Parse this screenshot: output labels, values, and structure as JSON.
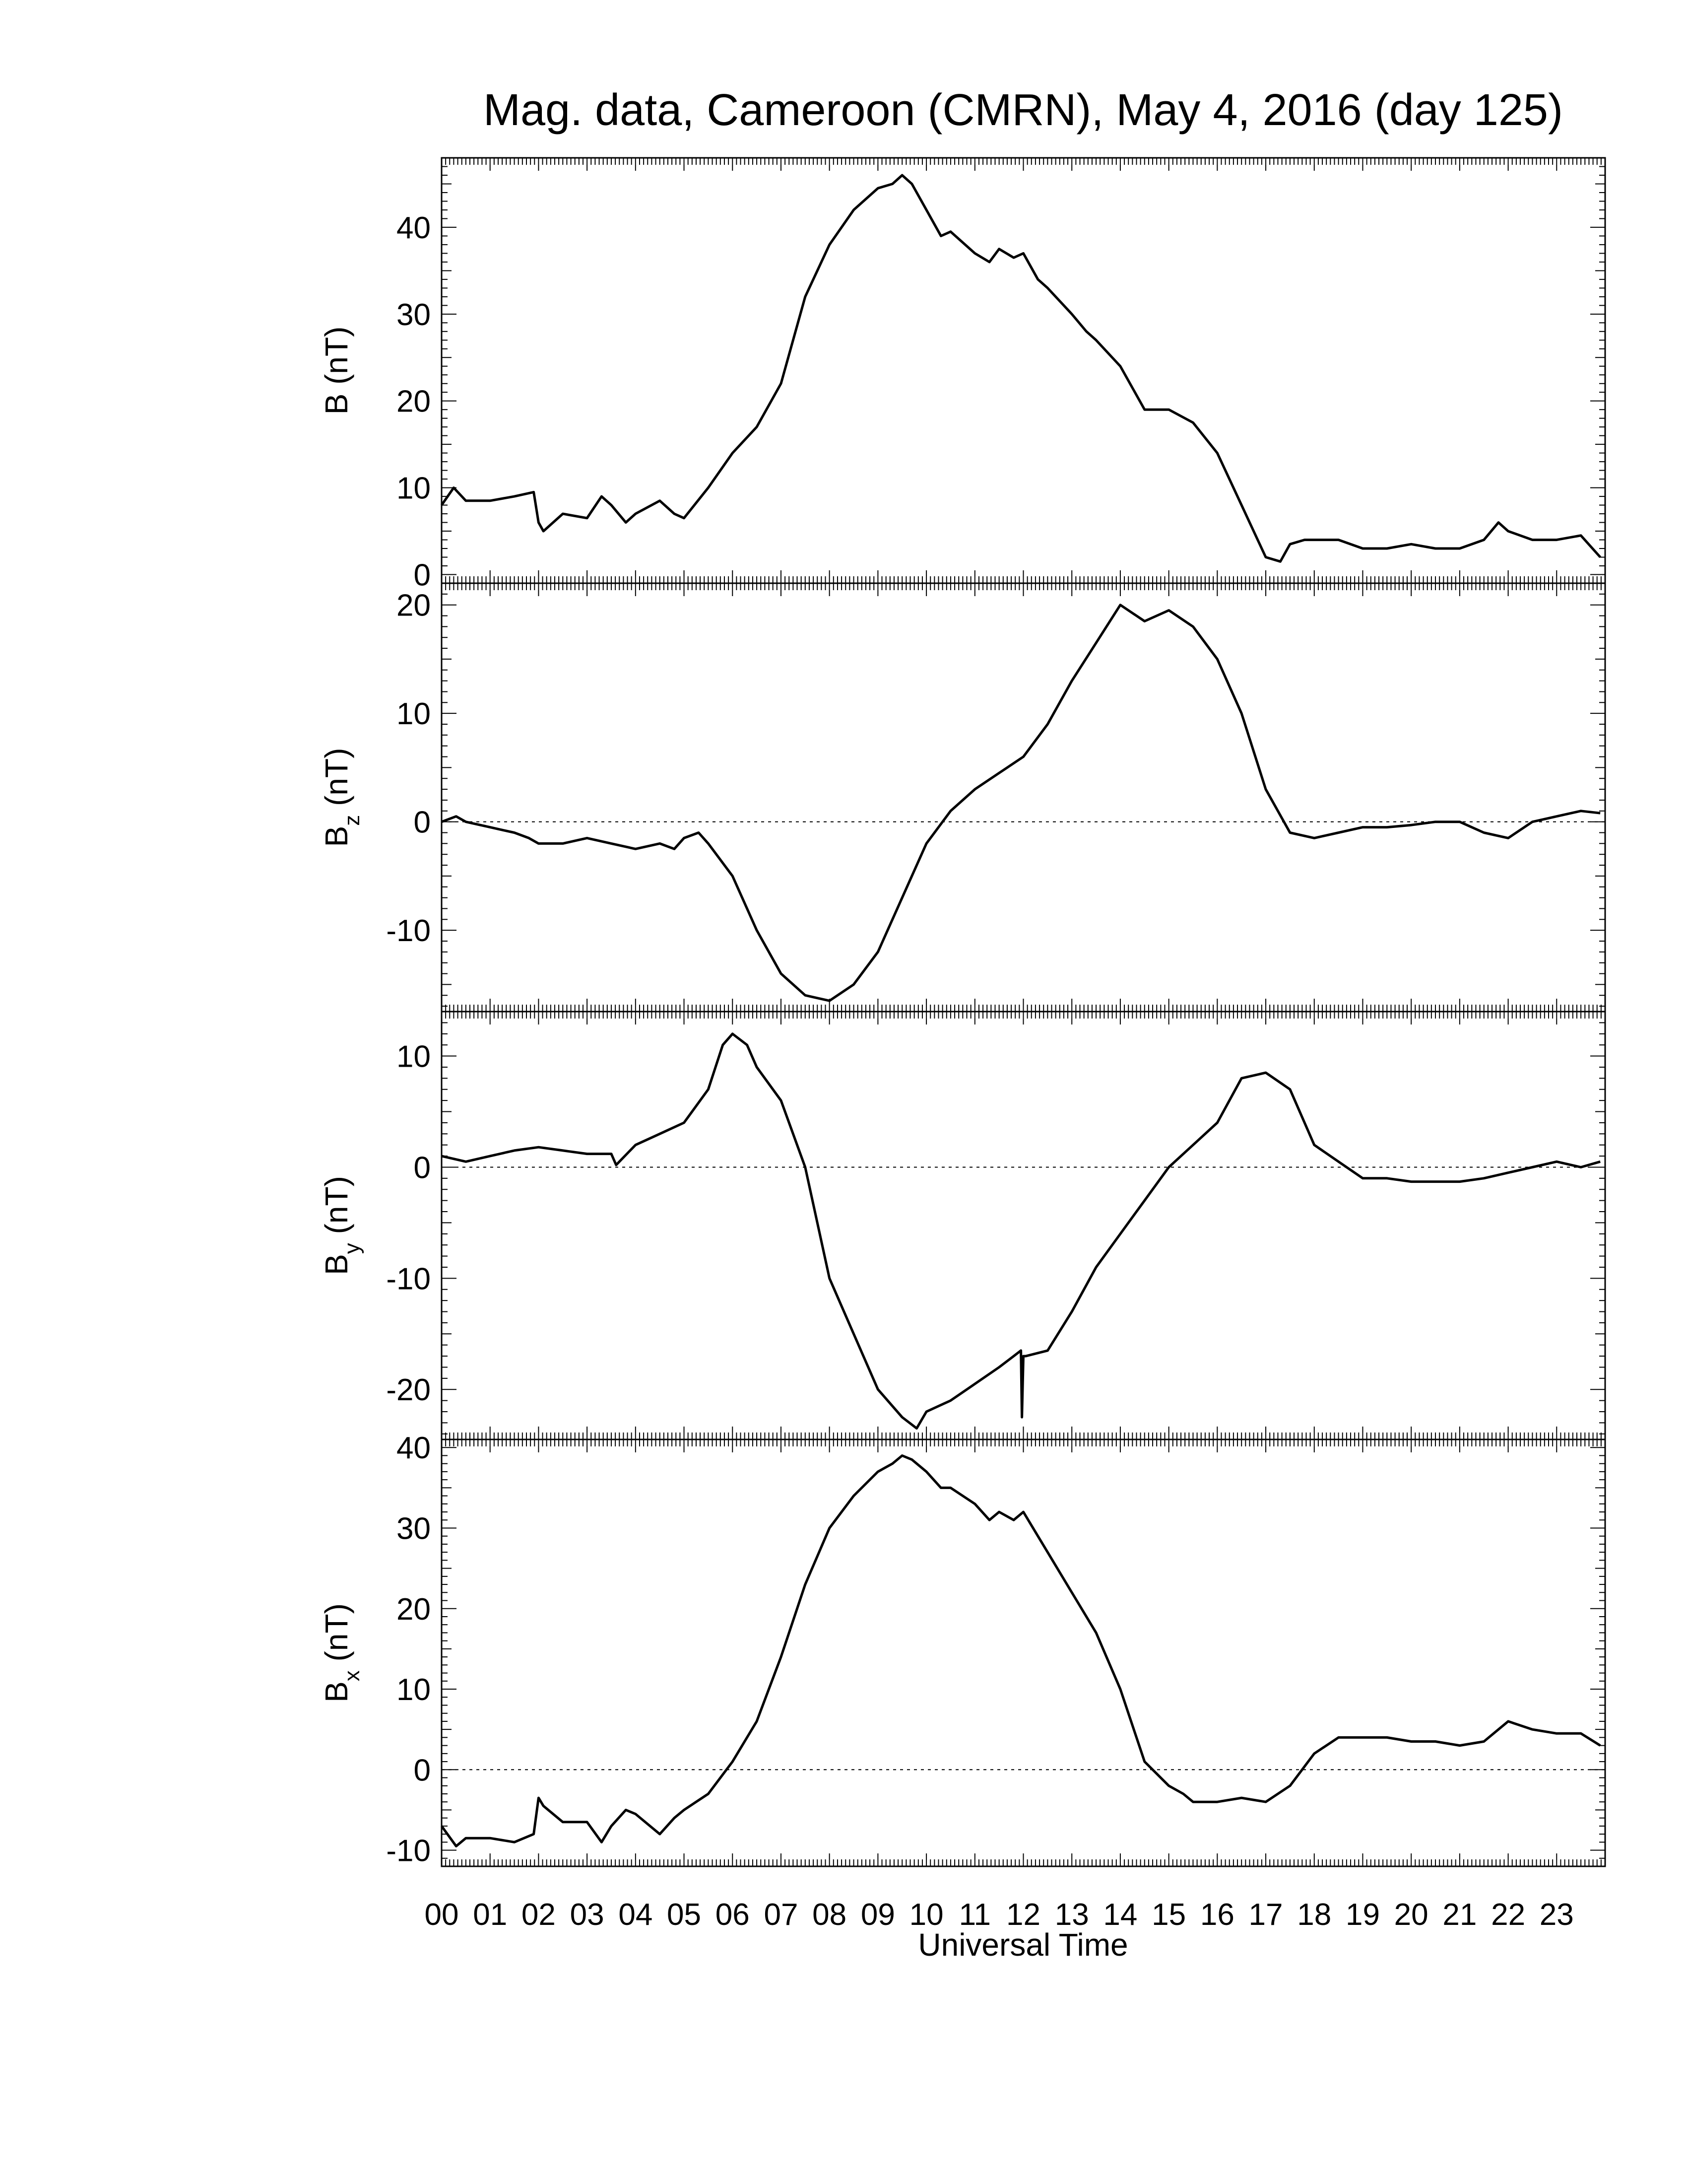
{
  "chart_data": {
    "type": "line",
    "title": "Mag. data, Cameroon (CMRN), May 4, 2016 (day 125)",
    "xlabel": "Universal Time",
    "x_tick_labels": [
      "00",
      "01",
      "02",
      "03",
      "04",
      "05",
      "06",
      "07",
      "08",
      "09",
      "10",
      "11",
      "12",
      "13",
      "14",
      "15",
      "16",
      "17",
      "18",
      "19",
      "20",
      "21",
      "22",
      "23"
    ],
    "xlim": [
      0,
      24
    ],
    "colors": {
      "line": "#000000",
      "zero_line": "#000000",
      "frame": "#000000"
    },
    "panels": [
      {
        "id": "B",
        "ylabel_main": "B",
        "ylabel_sub": "",
        "ylabel_unit": "(nT)",
        "ylim": [
          -1,
          48
        ],
        "yticks": [
          0,
          10,
          20,
          30,
          40
        ],
        "zero_line": false,
        "series": {
          "x": [
            0,
            0.25,
            0.5,
            1,
            1.5,
            1.9,
            2.0,
            2.1,
            2.5,
            3.0,
            3.3,
            3.5,
            3.8,
            4.0,
            4.5,
            4.8,
            5.0,
            5.5,
            6.0,
            6.5,
            7.0,
            7.5,
            8.0,
            8.5,
            9.0,
            9.3,
            9.5,
            9.7,
            10.0,
            10.3,
            10.5,
            11.0,
            11.3,
            11.5,
            11.8,
            12.0,
            12.3,
            12.5,
            13.0,
            13.3,
            13.5,
            14.0,
            14.5,
            15.0,
            15.5,
            16.0,
            16.5,
            17.0,
            17.3,
            17.5,
            17.8,
            18.0,
            18.5,
            19.0,
            19.5,
            20.0,
            20.5,
            21.0,
            21.5,
            21.8,
            22.0,
            22.5,
            23.0,
            23.5,
            23.9
          ],
          "y": [
            8,
            10,
            8.5,
            8.5,
            9,
            9.5,
            6,
            5,
            7,
            6.5,
            9,
            8,
            6,
            7,
            8.5,
            7,
            6.5,
            10,
            14,
            17,
            22,
            32,
            38,
            42,
            44.5,
            45,
            46,
            45,
            42,
            39,
            39.5,
            37,
            36,
            37.5,
            36.5,
            37,
            34,
            33,
            30,
            28,
            27,
            24,
            19,
            19,
            17.5,
            14,
            8,
            2,
            1.5,
            3.5,
            4,
            4,
            4,
            3,
            3,
            3.5,
            3,
            3,
            4,
            6,
            5,
            4,
            4,
            4.5,
            2
          ]
        }
      },
      {
        "id": "Bz",
        "ylabel_main": "B",
        "ylabel_sub": "z",
        "ylabel_unit": "(nT)",
        "ylim": [
          -17.5,
          22
        ],
        "yticks": [
          -10,
          0,
          10,
          20
        ],
        "zero_line": true,
        "series": {
          "x": [
            0,
            0.3,
            0.5,
            1,
            1.5,
            1.8,
            2.0,
            2.5,
            3.0,
            3.5,
            4.0,
            4.5,
            4.8,
            5.0,
            5.3,
            5.5,
            6,
            6.5,
            7,
            7.5,
            8,
            8.5,
            9,
            9.5,
            10,
            10.5,
            11,
            11.5,
            12,
            12.5,
            13,
            13.5,
            14,
            14.5,
            15,
            15.5,
            16,
            16.5,
            17,
            17.5,
            18,
            18.5,
            19,
            19.5,
            20,
            20.5,
            21,
            21.5,
            22,
            22.5,
            23,
            23.5,
            23.9
          ],
          "y": [
            0,
            0.5,
            0,
            -0.5,
            -1,
            -1.5,
            -2,
            -2,
            -1.5,
            -2,
            -2.5,
            -2,
            -2.5,
            -1.5,
            -1,
            -2,
            -5,
            -10,
            -14,
            -16,
            -16.5,
            -15,
            -12,
            -7,
            -2,
            1,
            3,
            4.5,
            6,
            9,
            13,
            16.5,
            20,
            18.5,
            19.5,
            18,
            15,
            10,
            3,
            -1,
            -1.5,
            -1,
            -0.5,
            -0.5,
            -0.3,
            0,
            0,
            -1,
            -1.5,
            0,
            0.5,
            1,
            0.8
          ]
        }
      },
      {
        "id": "By",
        "ylabel_main": "B",
        "ylabel_sub": "y",
        "ylabel_unit": "(nT)",
        "ylim": [
          -24.5,
          14
        ],
        "yticks": [
          -20,
          -10,
          0,
          10
        ],
        "zero_line": true,
        "series": {
          "x": [
            0,
            0.5,
            1,
            1.5,
            2,
            2.5,
            3.0,
            3.5,
            3.6,
            4,
            4.5,
            5,
            5.5,
            5.8,
            6,
            6.3,
            6.5,
            7,
            7.5,
            8,
            8.5,
            9,
            9.5,
            9.8,
            10,
            10.5,
            11,
            11.5,
            11.8,
            11.95,
            11.97,
            12.0,
            12.05,
            12.5,
            13,
            13.5,
            14,
            14.5,
            15,
            15.5,
            16,
            16.5,
            17,
            17.5,
            18,
            18.5,
            19,
            19.5,
            20,
            20.5,
            21,
            21.5,
            22,
            22.5,
            23,
            23.5,
            23.9
          ],
          "y": [
            1,
            0.5,
            1,
            1.5,
            1.8,
            1.5,
            1.2,
            1.2,
            0.2,
            2,
            3,
            4,
            7,
            11,
            12,
            11,
            9,
            6,
            0,
            -10,
            -15,
            -20,
            -22.5,
            -23.5,
            -22,
            -21,
            -19.5,
            -18,
            -17,
            -16.5,
            -22.5,
            -17,
            -17,
            -16.5,
            -13,
            -9,
            -6,
            -3,
            0,
            2,
            4,
            8,
            8.5,
            7,
            2,
            0.5,
            -1,
            -1,
            -1.3,
            -1.3,
            -1.3,
            -1,
            -0.5,
            0,
            0.5,
            0,
            0.5
          ]
        }
      },
      {
        "id": "Bx",
        "ylabel_main": "B",
        "ylabel_sub": "x",
        "ylabel_unit": "(nT)",
        "ylim": [
          -12,
          41
        ],
        "yticks": [
          -10,
          0,
          10,
          20,
          30,
          40
        ],
        "zero_line": true,
        "series": {
          "x": [
            0,
            0.3,
            0.5,
            1,
            1.5,
            1.9,
            2.0,
            2.1,
            2.5,
            3.0,
            3.3,
            3.5,
            3.8,
            4.0,
            4.5,
            4.8,
            5.0,
            5.5,
            6.0,
            6.5,
            7.0,
            7.5,
            8.0,
            8.5,
            9.0,
            9.3,
            9.5,
            9.7,
            10.0,
            10.3,
            10.5,
            11.0,
            11.3,
            11.5,
            11.8,
            12.0,
            12.3,
            12.5,
            13.0,
            13.5,
            14.0,
            14.5,
            15.0,
            15.3,
            15.5,
            16.0,
            16.5,
            17.0,
            17.5,
            18.0,
            18.5,
            19.0,
            19.5,
            20.0,
            20.5,
            21.0,
            21.5,
            21.8,
            22.0,
            22.5,
            23.0,
            23.5,
            23.9
          ],
          "y": [
            -7,
            -9.5,
            -8.5,
            -8.5,
            -9,
            -8,
            -3.5,
            -4.5,
            -6.5,
            -6.5,
            -9,
            -7,
            -5,
            -5.5,
            -8,
            -6,
            -5,
            -3,
            1,
            6,
            14,
            23,
            30,
            34,
            37,
            38,
            39,
            38.5,
            37,
            35,
            35,
            33,
            31,
            32,
            31,
            32,
            29,
            27,
            22,
            17,
            10,
            1,
            -2,
            -3,
            -4,
            -4,
            -3.5,
            -4,
            -2,
            2,
            4,
            4,
            4,
            3.5,
            3.5,
            3,
            3.5,
            5,
            6,
            5,
            4.5,
            4.5,
            3
          ]
        }
      }
    ]
  }
}
